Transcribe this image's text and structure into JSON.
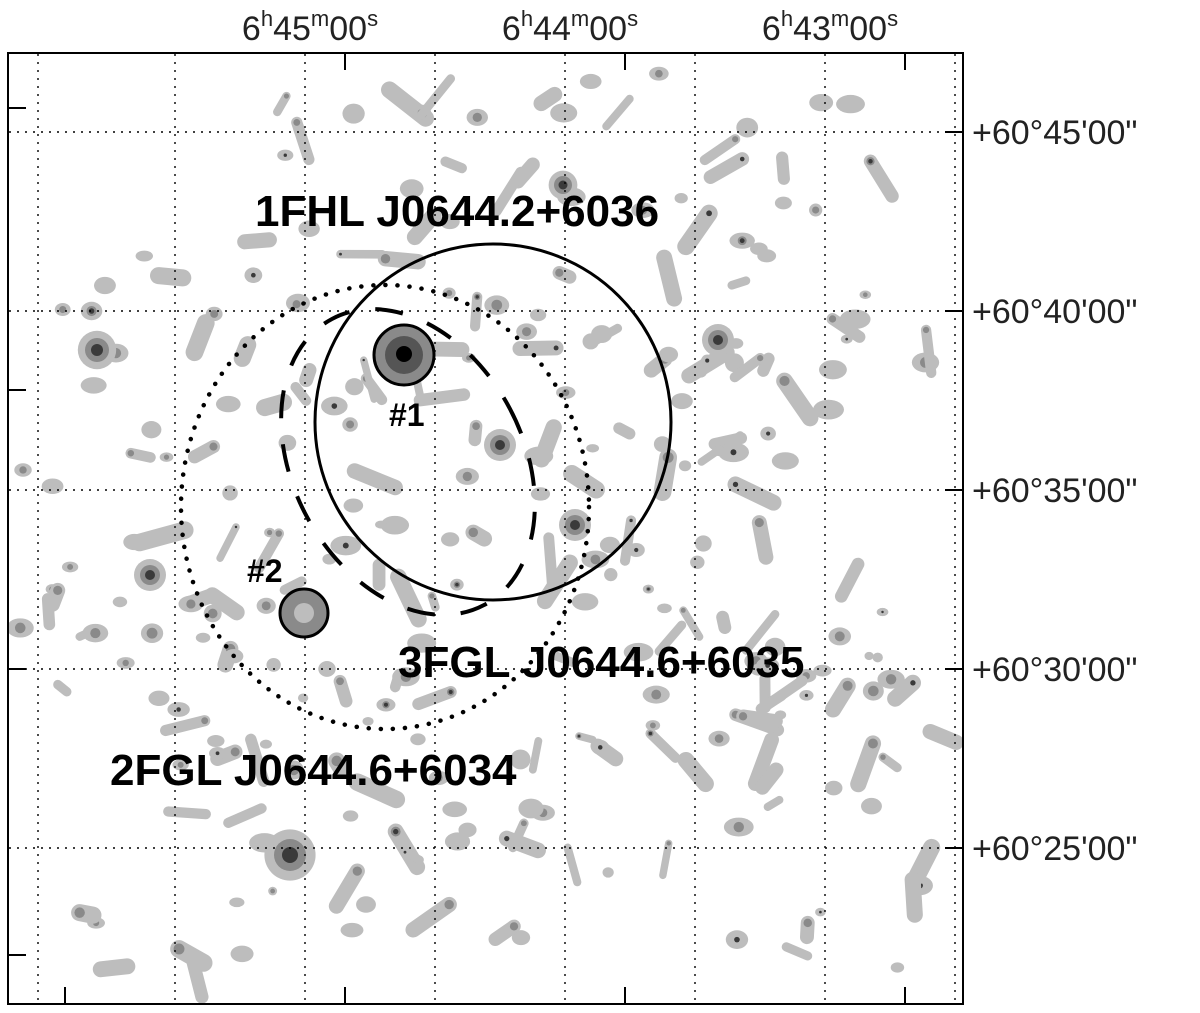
{
  "axes": {
    "ra_ticks": [
      {
        "h": "6",
        "m": "45",
        "s": "00"
      },
      {
        "h": "6",
        "m": "44",
        "s": "00"
      },
      {
        "h": "6",
        "m": "43",
        "s": "00"
      }
    ],
    "dec_ticks": [
      "+60°45'00\"",
      "+60°40'00\"",
      "+60°35'00\"",
      "+60°30'00\"",
      "+60°25'00\""
    ]
  },
  "labels": {
    "fhl": "1FHL J0644.2+6036",
    "fgl3": "3FGL J0644.6+6035",
    "fgl2": "2FGL J0644.6+6034",
    "src1": "#1",
    "src2": "#2"
  },
  "colors": {
    "contour_light": "#bdbdbd",
    "contour_mid": "#8a8a8a",
    "contour_dark": "#3a3a3a",
    "ink": "#000000"
  }
}
